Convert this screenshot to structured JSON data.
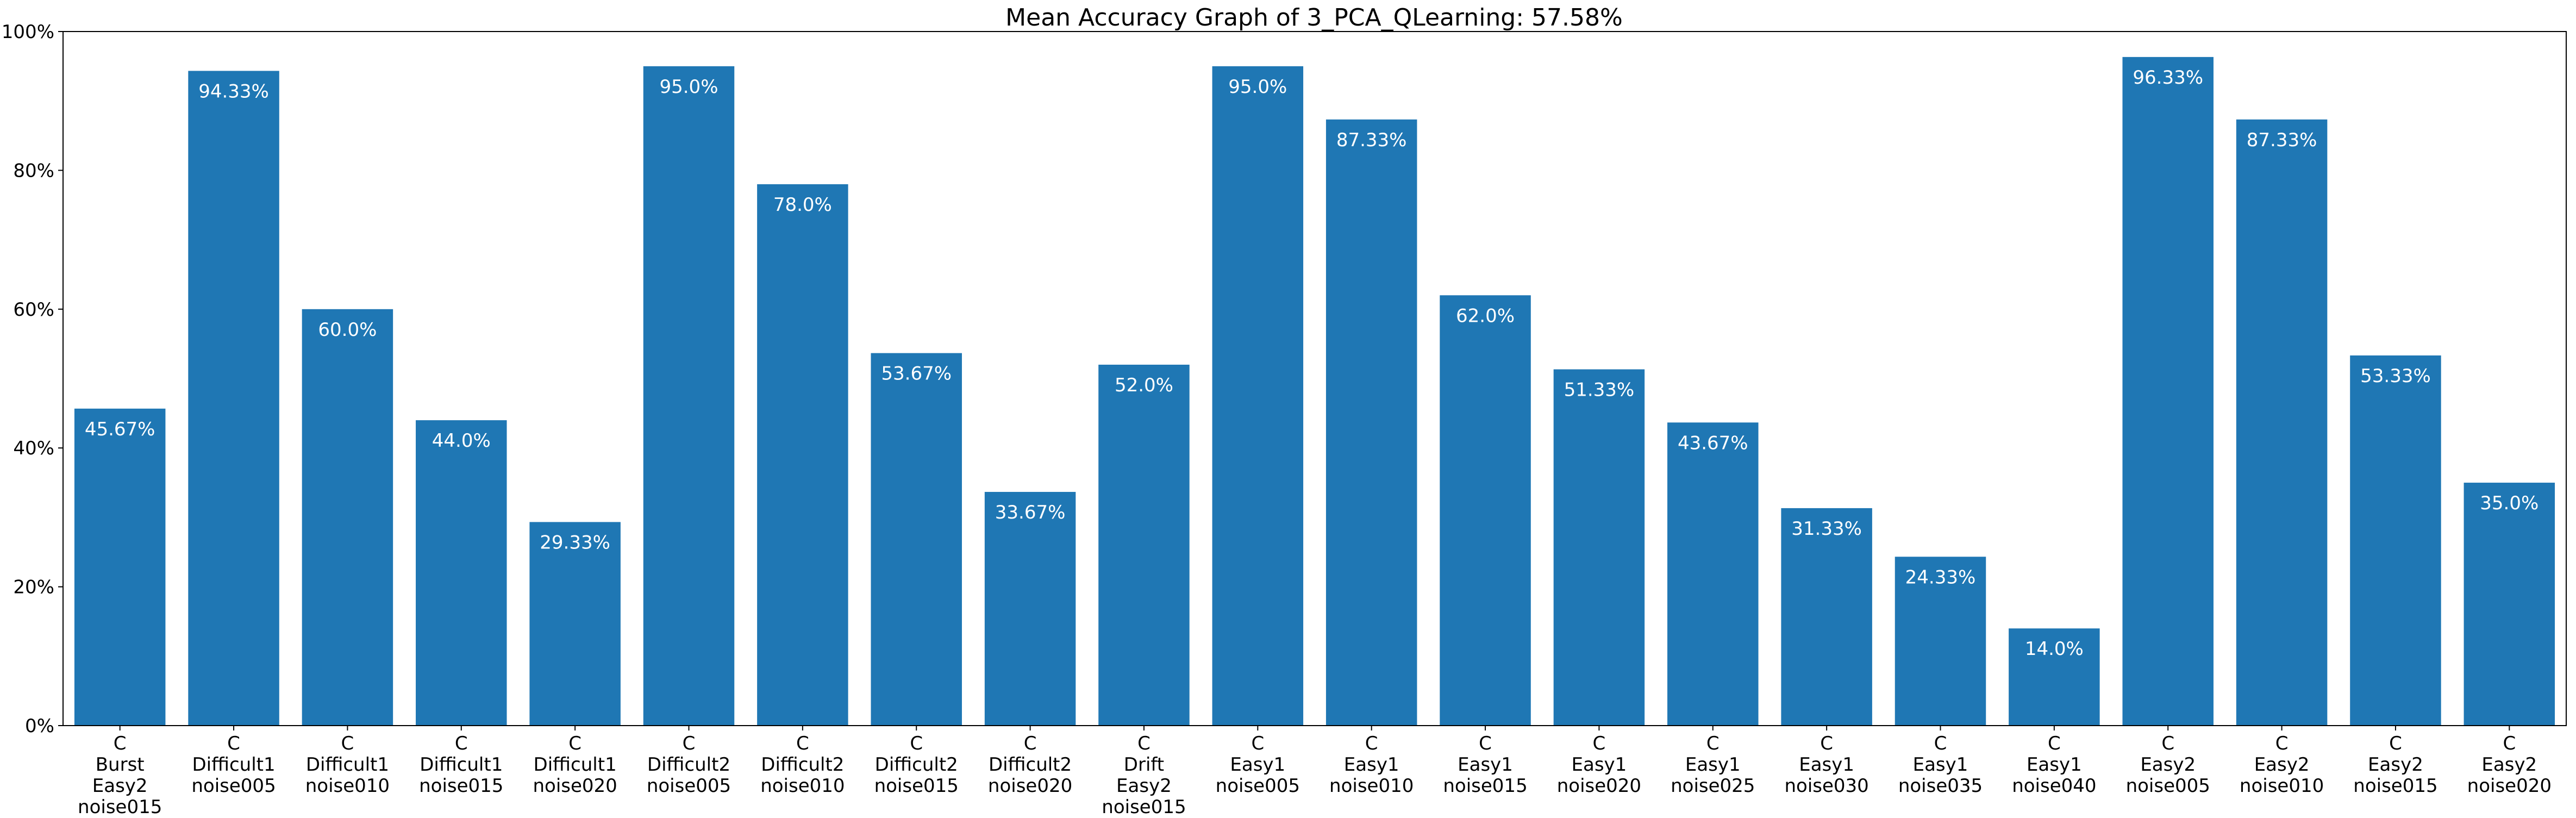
{
  "chart_data": {
    "type": "bar",
    "title": "Mean Accuracy Graph of 3_PCA_QLearning: 57.58%",
    "xlabel": "",
    "ylabel": "",
    "ylim": [
      0,
      100
    ],
    "yticks": [
      0,
      20,
      40,
      60,
      80,
      100
    ],
    "ytick_labels": [
      "0%",
      "20%",
      "40%",
      "60%",
      "80%",
      "100%"
    ],
    "grid": false,
    "bar_color": "#1f77b4",
    "data_label_color": "#ffffff",
    "categories": [
      [
        "C",
        "Burst",
        "Easy2",
        "noise015"
      ],
      [
        "C",
        "Difficult1",
        "noise005"
      ],
      [
        "C",
        "Difficult1",
        "noise010"
      ],
      [
        "C",
        "Difficult1",
        "noise015"
      ],
      [
        "C",
        "Difficult1",
        "noise020"
      ],
      [
        "C",
        "Difficult2",
        "noise005"
      ],
      [
        "C",
        "Difficult2",
        "noise010"
      ],
      [
        "C",
        "Difficult2",
        "noise015"
      ],
      [
        "C",
        "Difficult2",
        "noise020"
      ],
      [
        "C",
        "Drift",
        "Easy2",
        "noise015"
      ],
      [
        "C",
        "Easy1",
        "noise005"
      ],
      [
        "C",
        "Easy1",
        "noise010"
      ],
      [
        "C",
        "Easy1",
        "noise015"
      ],
      [
        "C",
        "Easy1",
        "noise020"
      ],
      [
        "C",
        "Easy1",
        "noise025"
      ],
      [
        "C",
        "Easy1",
        "noise030"
      ],
      [
        "C",
        "Easy1",
        "noise035"
      ],
      [
        "C",
        "Easy1",
        "noise040"
      ],
      [
        "C",
        "Easy2",
        "noise005"
      ],
      [
        "C",
        "Easy2",
        "noise010"
      ],
      [
        "C",
        "Easy2",
        "noise015"
      ],
      [
        "C",
        "Easy2",
        "noise020"
      ]
    ],
    "values": [
      45.67,
      94.33,
      60.0,
      44.0,
      29.33,
      95.0,
      78.0,
      53.67,
      33.67,
      52.0,
      95.0,
      87.33,
      62.0,
      51.33,
      43.67,
      31.33,
      24.33,
      14.0,
      96.33,
      87.33,
      53.33,
      35.0
    ],
    "data_labels": [
      "45.67%",
      "94.33%",
      "60.0%",
      "44.0%",
      "29.33%",
      "95.0%",
      "78.0%",
      "53.67%",
      "33.67%",
      "52.0%",
      "95.0%",
      "87.33%",
      "62.0%",
      "51.33%",
      "43.67%",
      "31.33%",
      "24.33%",
      "14.0%",
      "96.33%",
      "87.33%",
      "53.33%",
      "35.0%"
    ]
  }
}
